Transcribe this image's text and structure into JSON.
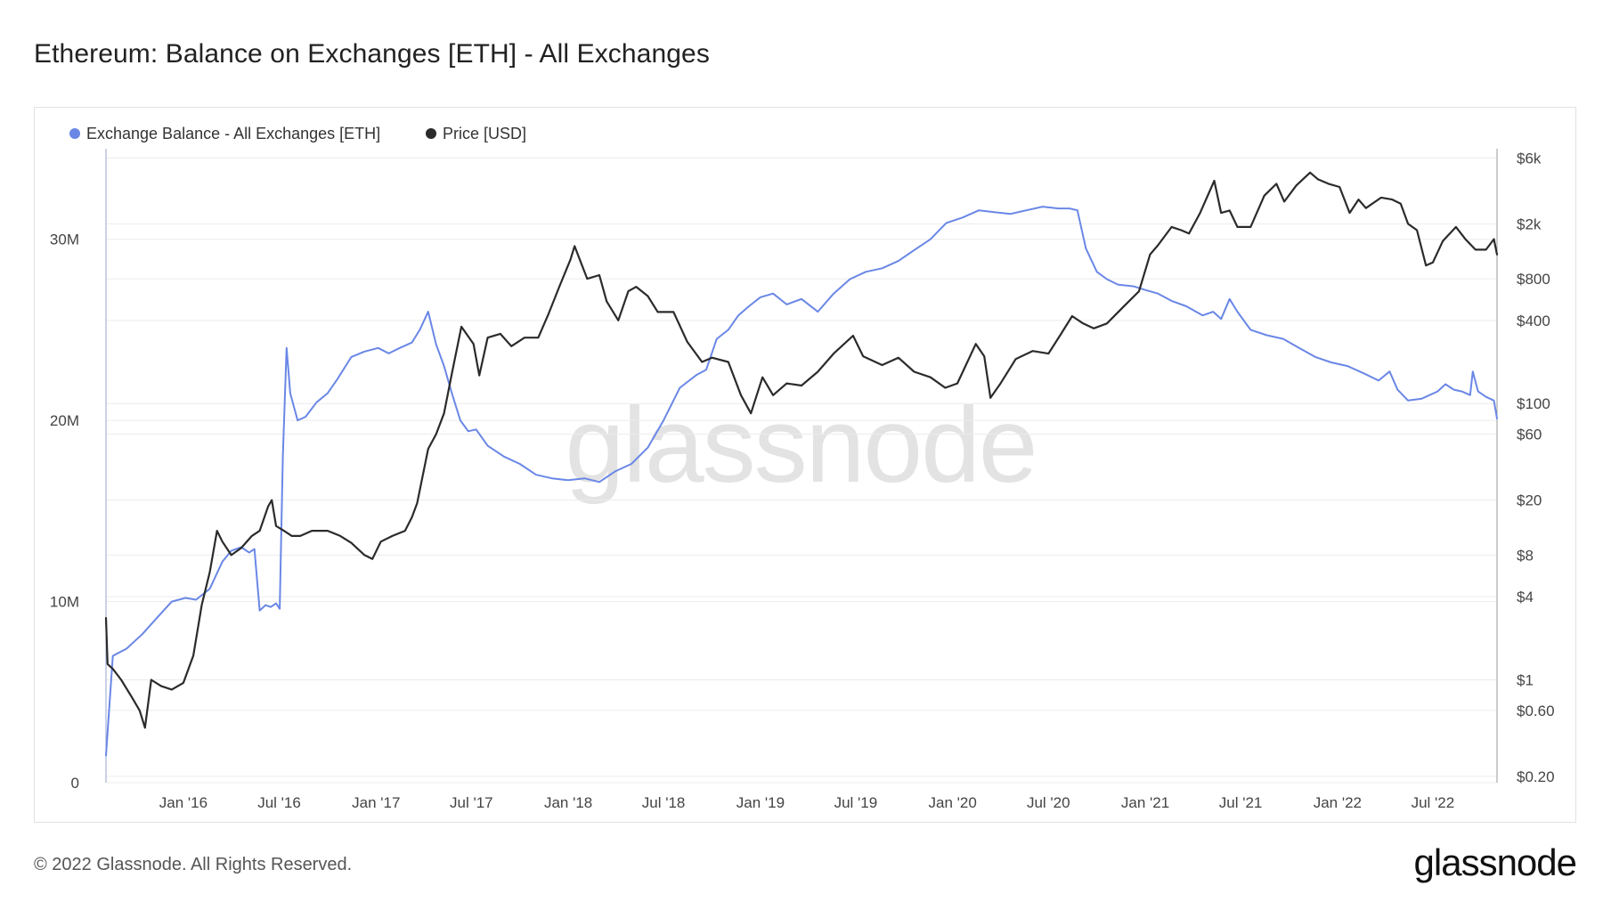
{
  "title": "Ethereum: Balance on Exchanges [ETH] - All Exchanges",
  "footer": {
    "copyright": "© 2022 Glassnode. All Rights Reserved.",
    "logo": "glassnode"
  },
  "watermark": "glassnode",
  "colors": {
    "balance": "#6a87e6",
    "price": "#2b2b2b",
    "grid": "#ececec",
    "axis_line": "#9aa6cf"
  },
  "chart_data": {
    "type": "line",
    "legend_position": "top-left",
    "grid": true,
    "x_ticks": [
      "Jan '16",
      "Jul '16",
      "Jan '17",
      "Jul '17",
      "Jan '18",
      "Jul '18",
      "Jan '19",
      "Jul '19",
      "Jan '20",
      "Jul '20",
      "Jan '21",
      "Jul '21",
      "Jan '22",
      "Jul '22"
    ],
    "x_tick_dates": [
      "2016-01-01",
      "2016-07-01",
      "2017-01-01",
      "2017-07-01",
      "2018-01-01",
      "2018-07-01",
      "2019-01-01",
      "2019-07-01",
      "2020-01-01",
      "2020-07-01",
      "2021-01-01",
      "2021-07-01",
      "2022-01-01",
      "2022-07-01"
    ],
    "xlim": [
      "2015-08-07",
      "2022-10-31"
    ],
    "y_left": {
      "label": "",
      "ticks": [
        0,
        10000000,
        20000000,
        30000000
      ],
      "tick_labels": [
        "0",
        "10M",
        "20M",
        "30M"
      ],
      "ylim": [
        0,
        35000000
      ]
    },
    "y_right": {
      "label": "",
      "scale": "log",
      "ticks": [
        0.2,
        0.6,
        1,
        4,
        8,
        20,
        60,
        100,
        400,
        800,
        2000,
        6000
      ],
      "tick_labels": [
        "$0.20",
        "$0.60",
        "$1",
        "$4",
        "$8",
        "$20",
        "$60",
        "$100",
        "$400",
        "$800",
        "$2k",
        "$6k"
      ],
      "ylim": [
        0.18,
        7000
      ]
    },
    "series": [
      {
        "name": "Exchange Balance - All Exchanges [ETH]",
        "axis": "left",
        "x": [
          "2015-08-07",
          "2015-08-20",
          "2015-09-15",
          "2015-10-15",
          "2015-11-15",
          "2015-12-10",
          "2016-01-05",
          "2016-01-25",
          "2016-02-20",
          "2016-03-15",
          "2016-04-01",
          "2016-04-20",
          "2016-05-05",
          "2016-05-15",
          "2016-05-25",
          "2016-06-05",
          "2016-06-15",
          "2016-06-25",
          "2016-07-02",
          "2016-07-08",
          "2016-07-15",
          "2016-07-22",
          "2016-08-05",
          "2016-08-20",
          "2016-09-10",
          "2016-10-01",
          "2016-10-20",
          "2016-11-15",
          "2016-12-10",
          "2017-01-05",
          "2017-01-25",
          "2017-02-15",
          "2017-03-10",
          "2017-03-25",
          "2017-04-10",
          "2017-04-25",
          "2017-05-10",
          "2017-05-25",
          "2017-06-10",
          "2017-06-25",
          "2017-07-10",
          "2017-08-01",
          "2017-09-01",
          "2017-10-01",
          "2017-11-01",
          "2017-12-01",
          "2018-01-01",
          "2018-02-01",
          "2018-03-01",
          "2018-04-01",
          "2018-05-01",
          "2018-06-01",
          "2018-07-01",
          "2018-08-01",
          "2018-09-01",
          "2018-09-20",
          "2018-10-10",
          "2018-11-01",
          "2018-11-20",
          "2018-12-10",
          "2019-01-01",
          "2019-01-25",
          "2019-02-20",
          "2019-03-20",
          "2019-04-20",
          "2019-05-20",
          "2019-06-20",
          "2019-07-20",
          "2019-08-20",
          "2019-09-20",
          "2019-10-20",
          "2019-11-20",
          "2019-12-20",
          "2020-01-20",
          "2020-02-20",
          "2020-03-20",
          "2020-04-20",
          "2020-05-20",
          "2020-06-20",
          "2020-07-20",
          "2020-08-10",
          "2020-08-25",
          "2020-09-10",
          "2020-10-01",
          "2020-10-20",
          "2020-11-10",
          "2020-12-10",
          "2021-01-01",
          "2021-01-25",
          "2021-02-20",
          "2021-03-20",
          "2021-04-20",
          "2021-05-10",
          "2021-05-25",
          "2021-06-10",
          "2021-06-25",
          "2021-07-20",
          "2021-08-20",
          "2021-09-20",
          "2021-10-20",
          "2021-11-20",
          "2021-12-20",
          "2022-01-20",
          "2022-02-20",
          "2022-03-20",
          "2022-04-10",
          "2022-04-25",
          "2022-05-15",
          "2022-06-10",
          "2022-06-25",
          "2022-07-10",
          "2022-07-25",
          "2022-08-10",
          "2022-08-25",
          "2022-09-10",
          "2022-09-15",
          "2022-09-25",
          "2022-10-10",
          "2022-10-25",
          "2022-10-31"
        ],
        "values": [
          1500000,
          7000000,
          7400000,
          8200000,
          9200000,
          10000000,
          10200000,
          10100000,
          10700000,
          12200000,
          12800000,
          13000000,
          12700000,
          12900000,
          9500000,
          9800000,
          9700000,
          9900000,
          9600000,
          18000000,
          24000000,
          21500000,
          20000000,
          20200000,
          21000000,
          21500000,
          22300000,
          23500000,
          23800000,
          24000000,
          23700000,
          24000000,
          24300000,
          25000000,
          26000000,
          24200000,
          23000000,
          21500000,
          20000000,
          19400000,
          19500000,
          18600000,
          18000000,
          17600000,
          17000000,
          16800000,
          16700000,
          16800000,
          16600000,
          17200000,
          17600000,
          18500000,
          20000000,
          21800000,
          22500000,
          22800000,
          24500000,
          25000000,
          25800000,
          26300000,
          26800000,
          27000000,
          26400000,
          26700000,
          26000000,
          27000000,
          27800000,
          28200000,
          28400000,
          28800000,
          29400000,
          30000000,
          30900000,
          31200000,
          31600000,
          31500000,
          31400000,
          31600000,
          31800000,
          31700000,
          31700000,
          31600000,
          29500000,
          28200000,
          27800000,
          27500000,
          27400000,
          27200000,
          27000000,
          26600000,
          26300000,
          25800000,
          26000000,
          25600000,
          26700000,
          26000000,
          25000000,
          24700000,
          24500000,
          24000000,
          23500000,
          23200000,
          23000000,
          22600000,
          22200000,
          22700000,
          21700000,
          21100000,
          21200000,
          21400000,
          21600000,
          22000000,
          21700000,
          21600000,
          21400000,
          22700000,
          21600000,
          21300000,
          21100000,
          20100000
        ]
      },
      {
        "name": "Price [USD]",
        "axis": "right",
        "x": [
          "2015-08-07",
          "2015-08-10",
          "2015-08-20",
          "2015-09-05",
          "2015-09-25",
          "2015-10-10",
          "2015-10-20",
          "2015-11-01",
          "2015-11-20",
          "2015-12-10",
          "2016-01-01",
          "2016-01-20",
          "2016-02-05",
          "2016-02-20",
          "2016-03-05",
          "2016-03-15",
          "2016-04-01",
          "2016-04-20",
          "2016-05-10",
          "2016-05-25",
          "2016-06-10",
          "2016-06-17",
          "2016-06-25",
          "2016-07-10",
          "2016-07-25",
          "2016-08-10",
          "2016-09-01",
          "2016-10-01",
          "2016-10-25",
          "2016-11-15",
          "2016-12-10",
          "2016-12-25",
          "2017-01-10",
          "2017-02-01",
          "2017-02-25",
          "2017-03-10",
          "2017-03-20",
          "2017-04-10",
          "2017-04-25",
          "2017-05-10",
          "2017-05-25",
          "2017-06-12",
          "2017-07-05",
          "2017-07-16",
          "2017-08-01",
          "2017-08-25",
          "2017-09-15",
          "2017-10-10",
          "2017-11-05",
          "2017-11-25",
          "2017-12-15",
          "2018-01-05",
          "2018-01-13",
          "2018-01-25",
          "2018-02-06",
          "2018-03-01",
          "2018-03-15",
          "2018-04-06",
          "2018-04-25",
          "2018-05-10",
          "2018-06-01",
          "2018-06-20",
          "2018-07-20",
          "2018-08-15",
          "2018-09-12",
          "2018-10-01",
          "2018-11-01",
          "2018-11-25",
          "2018-12-14",
          "2019-01-05",
          "2019-01-25",
          "2019-02-20",
          "2019-03-20",
          "2019-04-20",
          "2019-05-20",
          "2019-06-26",
          "2019-07-15",
          "2019-08-20",
          "2019-09-20",
          "2019-10-20",
          "2019-11-20",
          "2019-12-18",
          "2020-01-10",
          "2020-02-14",
          "2020-03-01",
          "2020-03-13",
          "2020-04-01",
          "2020-04-30",
          "2020-06-01",
          "2020-07-01",
          "2020-07-25",
          "2020-08-15",
          "2020-09-05",
          "2020-09-25",
          "2020-10-20",
          "2020-11-20",
          "2020-12-20",
          "2021-01-10",
          "2021-01-25",
          "2021-02-20",
          "2021-03-10",
          "2021-03-25",
          "2021-04-15",
          "2021-05-12",
          "2021-05-25",
          "2021-06-10",
          "2021-06-25",
          "2021-07-20",
          "2021-08-15",
          "2021-09-07",
          "2021-09-22",
          "2021-10-15",
          "2021-11-10",
          "2021-11-25",
          "2021-12-15",
          "2022-01-05",
          "2022-01-24",
          "2022-02-10",
          "2022-02-24",
          "2022-03-25",
          "2022-04-15",
          "2022-05-01",
          "2022-05-15",
          "2022-06-01",
          "2022-06-18",
          "2022-07-01",
          "2022-07-20",
          "2022-08-14",
          "2022-09-01",
          "2022-09-20",
          "2022-10-10",
          "2022-10-25",
          "2022-10-31"
        ],
        "values": [
          2.8,
          1.3,
          1.2,
          1.0,
          0.75,
          0.6,
          0.45,
          1.0,
          0.9,
          0.85,
          0.95,
          1.5,
          3.5,
          6.0,
          12.0,
          10.0,
          8.0,
          9.0,
          11.0,
          12.0,
          18.0,
          20.0,
          13.0,
          12.0,
          11.0,
          11.0,
          12.0,
          12.0,
          11.0,
          9.8,
          8.0,
          7.5,
          10.0,
          11.0,
          12.0,
          15.0,
          19.0,
          47.0,
          60.0,
          85.0,
          165.0,
          360.0,
          270.0,
          160.0,
          300.0,
          320.0,
          260.0,
          300.0,
          300.0,
          450.0,
          700.0,
          1100.0,
          1380.0,
          1050.0,
          800.0,
          850.0,
          550.0,
          400.0,
          650.0,
          700.0,
          600.0,
          460.0,
          460.0,
          280.0,
          200.0,
          215.0,
          200.0,
          115.0,
          85.0,
          155.0,
          115.0,
          140.0,
          135.0,
          170.0,
          230.0,
          310.0,
          220.0,
          190.0,
          215.0,
          170.0,
          155.0,
          130.0,
          140.0,
          270.0,
          220.0,
          110.0,
          140.0,
          210.0,
          240.0,
          230.0,
          320.0,
          430.0,
          380.0,
          350.0,
          380.0,
          500.0,
          650.0,
          1200.0,
          1400.0,
          1900.0,
          1800.0,
          1700.0,
          2400.0,
          4100.0,
          2400.0,
          2500.0,
          1900.0,
          1900.0,
          3200.0,
          3900.0,
          2900.0,
          3800.0,
          4700.0,
          4200.0,
          3900.0,
          3700.0,
          2400.0,
          3000.0,
          2600.0,
          3100.0,
          3000.0,
          2800.0,
          2000.0,
          1800.0,
          1000.0,
          1050.0,
          1500.0,
          1900.0,
          1550.0,
          1300.0,
          1300.0,
          1550.0,
          1200.0
        ]
      }
    ]
  }
}
